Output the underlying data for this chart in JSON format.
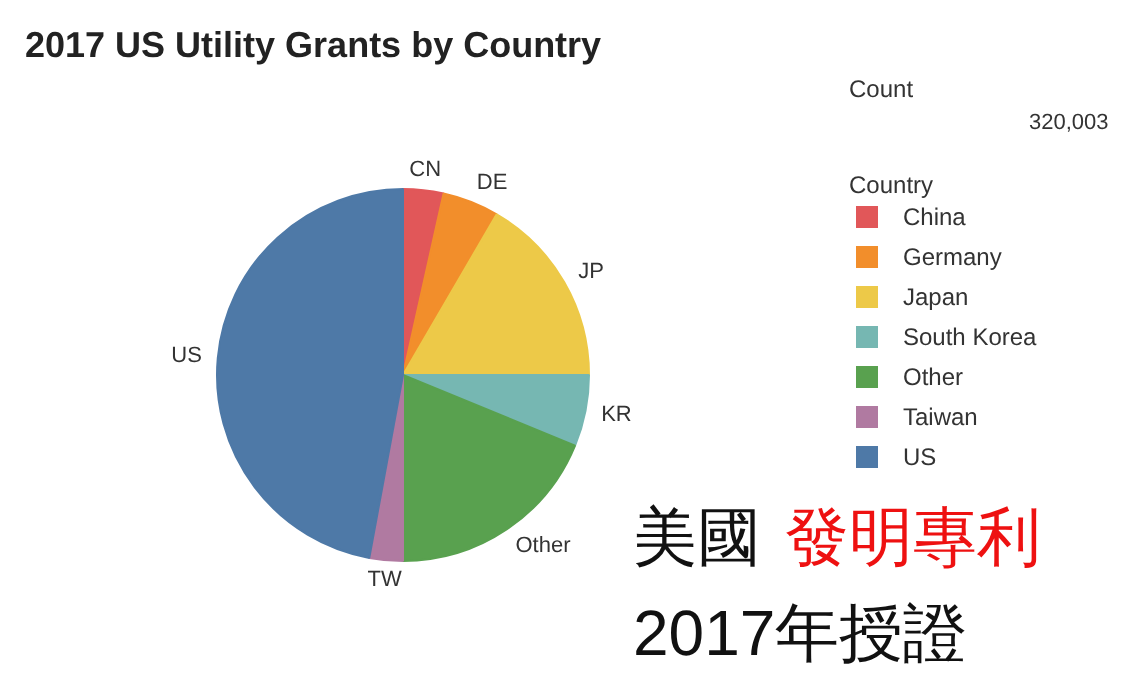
{
  "chart_data": {
    "type": "pie",
    "title": "2017 US Utility Grants by Country",
    "legend_title": "Country",
    "legend": "right",
    "categories": [
      "China",
      "Germany",
      "Japan",
      "South Korea",
      "Other",
      "Taiwan",
      "US"
    ],
    "values": [
      3.5,
      4.9,
      16.6,
      6.2,
      18.8,
      2.9,
      47.1
    ],
    "colors": [
      "#e15759",
      "#f28e2b",
      "#edc948",
      "#76b7b2",
      "#59a14f",
      "#b07aa1",
      "#4e79a7"
    ],
    "annotations": [
      {
        "text": "CN",
        "x": "China"
      },
      {
        "text": "DE",
        "x": "Germany"
      },
      {
        "text": "JP",
        "x": "Japan"
      },
      {
        "text": "KR",
        "x": "South Korea"
      },
      {
        "text": "Other",
        "x": "Other"
      },
      {
        "text": "TW",
        "x": "Taiwan"
      },
      {
        "text": "US",
        "x": "US"
      },
      "Count",
      "320,003",
      "美國",
      "發明專利",
      "2017年授證"
    ]
  }
}
